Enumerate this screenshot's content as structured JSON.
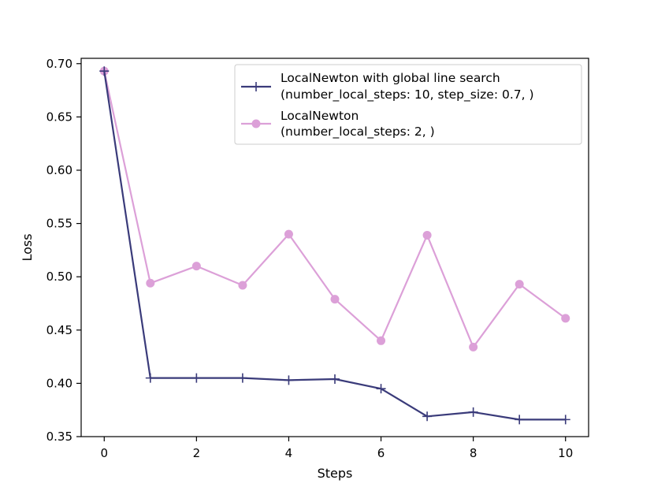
{
  "chart_data": {
    "type": "line",
    "xlabel": "Steps",
    "ylabel": "Loss",
    "xlim": [
      -0.5,
      10.5
    ],
    "ylim": [
      0.35,
      0.705
    ],
    "xticks": [
      0,
      2,
      4,
      6,
      8,
      10
    ],
    "xtick_labels": [
      "0",
      "2",
      "4",
      "6",
      "8",
      "10"
    ],
    "yticks": [
      0.35,
      0.4,
      0.45,
      0.5,
      0.55,
      0.6,
      0.65,
      0.7
    ],
    "ytick_labels": [
      "0.35",
      "0.40",
      "0.45",
      "0.50",
      "0.55",
      "0.60",
      "0.65",
      "0.70"
    ],
    "grid": false,
    "legend_position": "top-right",
    "x": [
      0,
      1,
      2,
      3,
      4,
      5,
      6,
      7,
      8,
      9,
      10
    ],
    "series": [
      {
        "name": "LocalNewton with global line search",
        "name_line2": "(number_local_steps: 10, step_size: 0.7, )",
        "color": "#3a3b7a",
        "marker": "plus",
        "values": [
          0.693,
          0.405,
          0.405,
          0.405,
          0.403,
          0.404,
          0.395,
          0.369,
          0.373,
          0.366,
          0.366
        ]
      },
      {
        "name": "LocalNewton",
        "name_line2": "(number_local_steps: 2, )",
        "color": "#dca0d8",
        "marker": "circle",
        "values": [
          0.693,
          0.494,
          0.51,
          0.492,
          0.54,
          0.479,
          0.44,
          0.539,
          0.434,
          0.493,
          0.461
        ]
      }
    ]
  }
}
